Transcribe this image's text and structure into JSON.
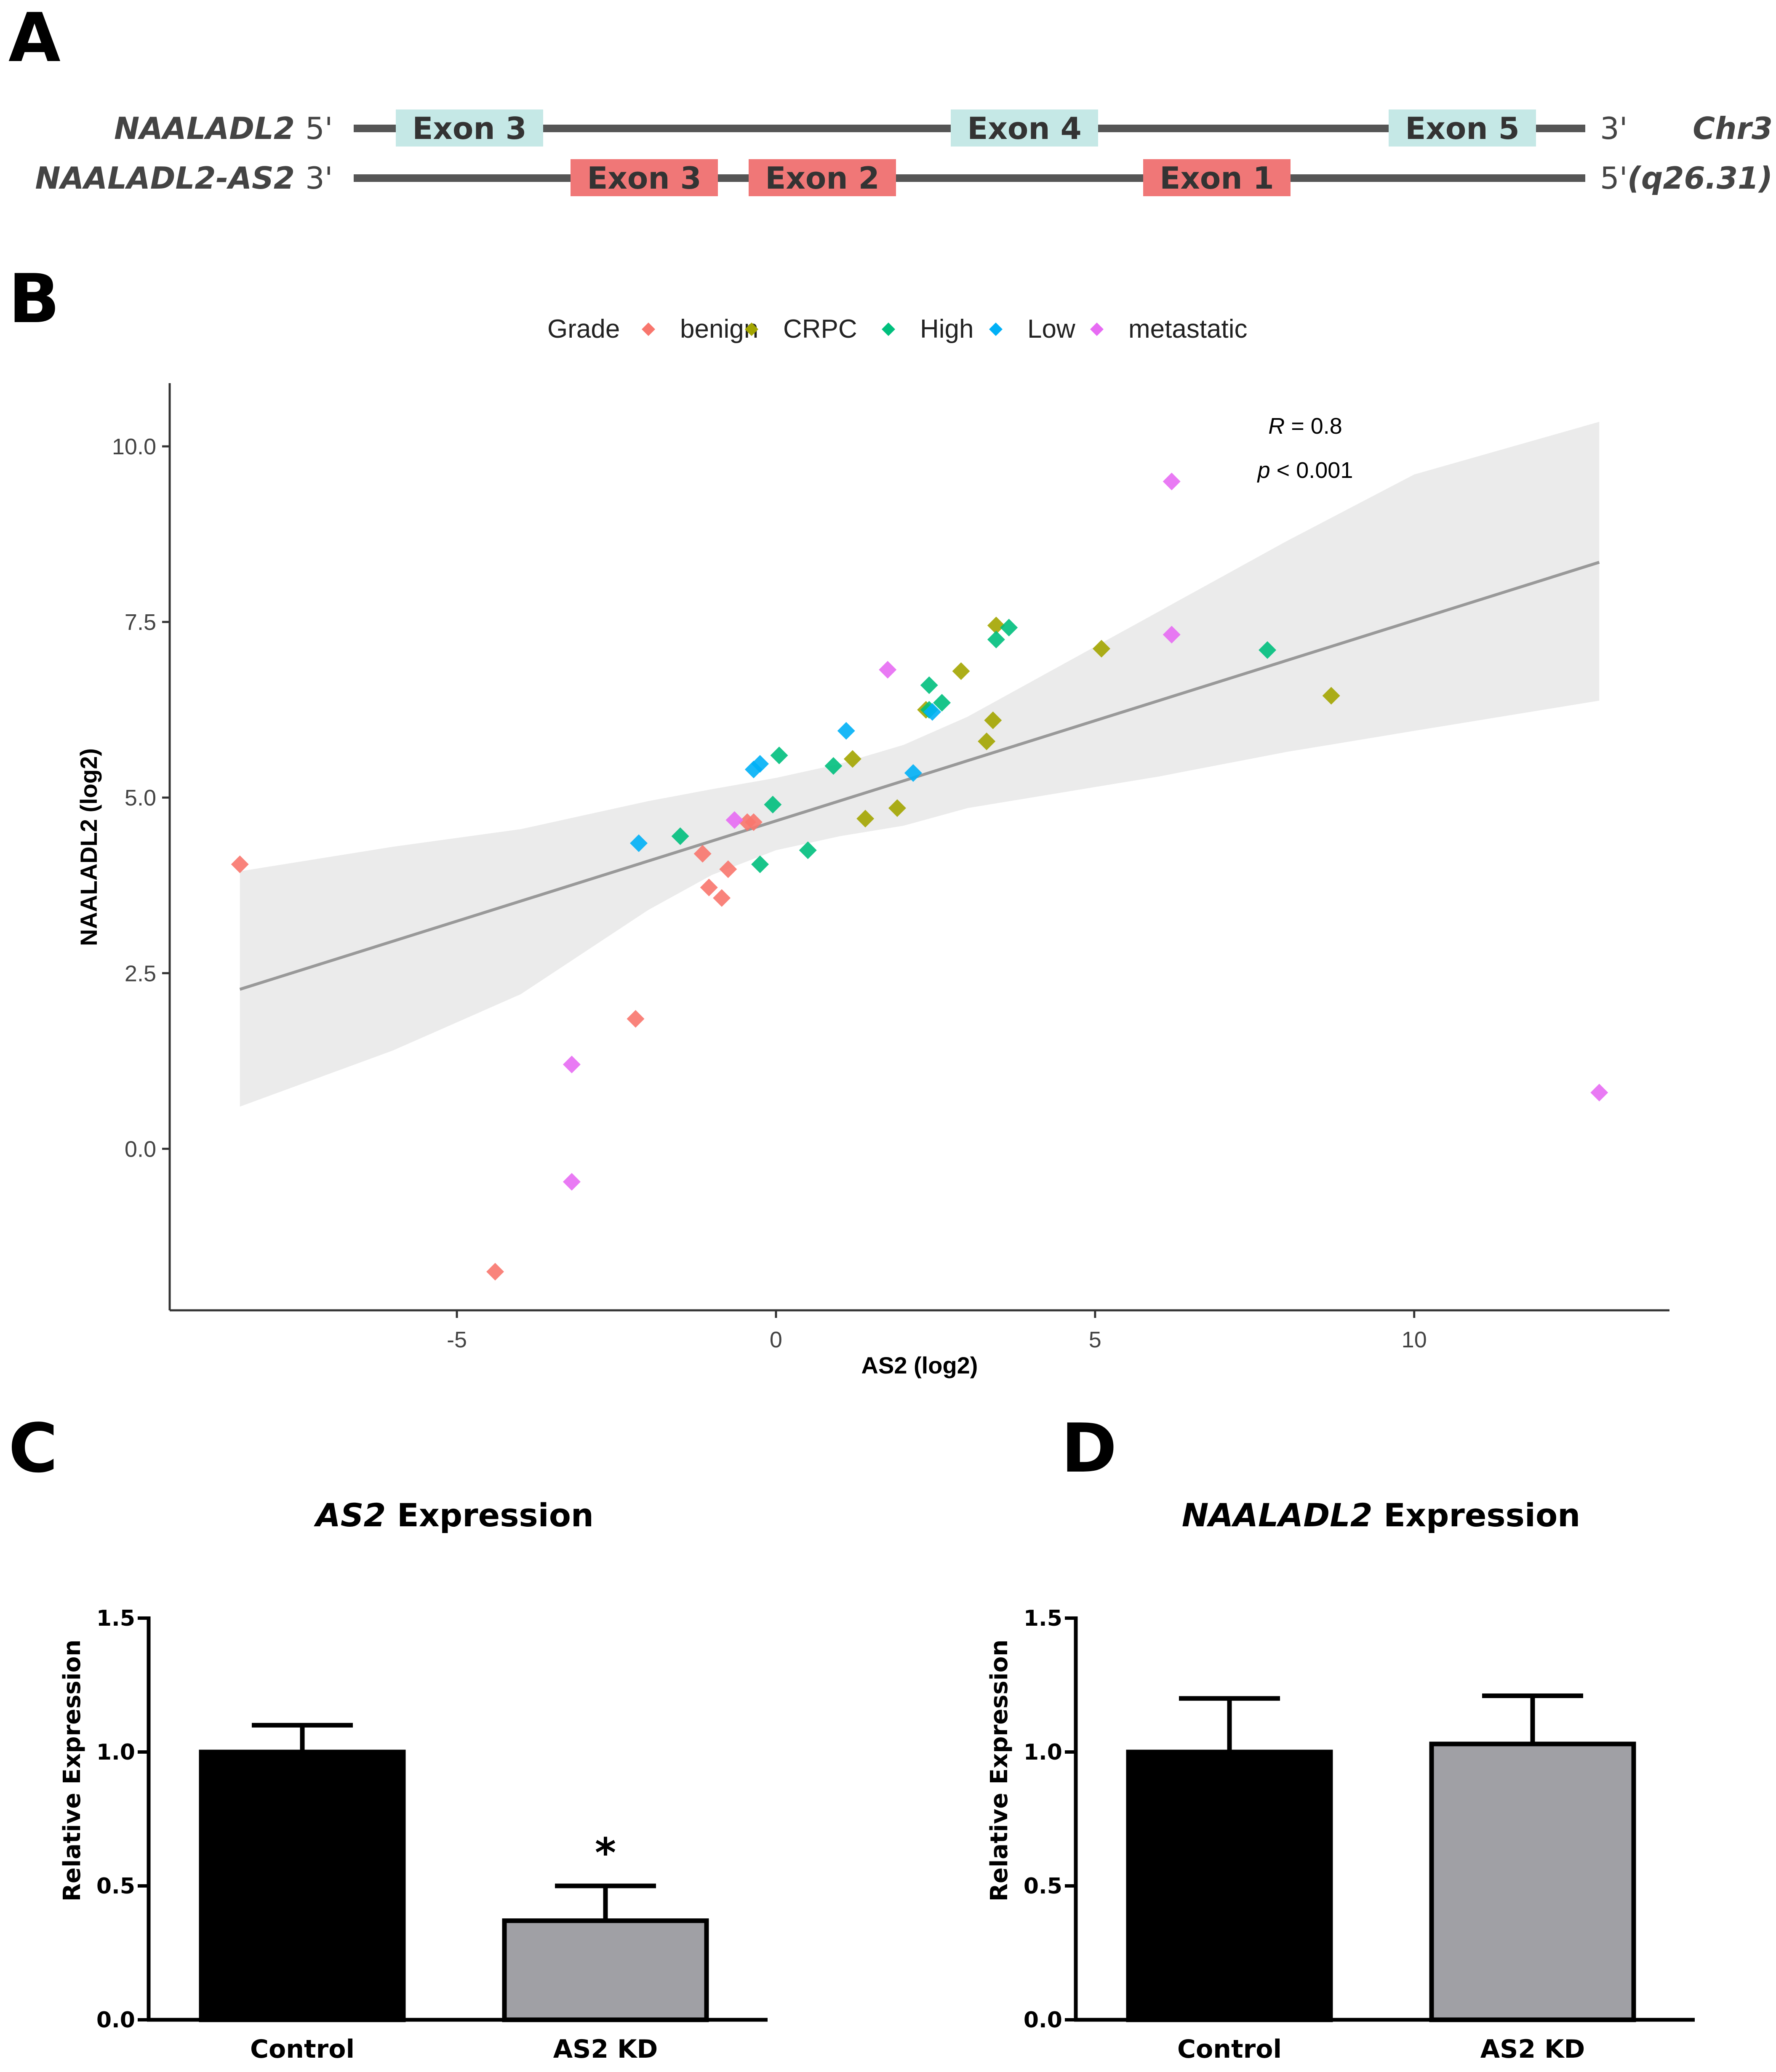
{
  "panel_labels": {
    "a": "A",
    "b": "B",
    "c": "C",
    "d": "D"
  },
  "panel_a": {
    "genes": [
      {
        "name": "NAALADL2",
        "left_end": "5'",
        "right_end": "3'",
        "exon_color": "#c5e8e6",
        "exons": [
          "Exon 3",
          "Exon 4",
          "Exon 5"
        ]
      },
      {
        "name": "NAALADL2-AS2",
        "left_end": "3'",
        "right_end": "5'",
        "exon_color": "#f07777",
        "exons": [
          "Exon 3",
          "Exon 2",
          "Exon 1"
        ]
      }
    ],
    "chromosome": "Chr3",
    "locus": "(q26.31)"
  },
  "colors": {
    "benign": "#f8766d",
    "CRPC": "#a3a500",
    "High": "#00bf7d",
    "Low": "#00b0f6",
    "metastatic": "#e76bf3",
    "ci_band": "#ebebeb",
    "fit_line": "#999999",
    "bar_control": "#000000",
    "bar_kd": "#a0a0a5"
  },
  "chart_data": [
    {
      "type": "scatter",
      "panel": "B",
      "xlabel": "AS2 (log2)",
      "ylabel": "NAALADL2 (log2)",
      "xlim": [
        -9.5,
        14
      ],
      "ylim": [
        -2.3,
        10.9
      ],
      "xticks": [
        -5,
        0,
        5,
        10
      ],
      "xtick_labels": [
        "-5",
        "0",
        "5",
        "10"
      ],
      "yticks": [
        0,
        2.5,
        5,
        7.5,
        10
      ],
      "ytick_labels": [
        "0.0",
        "2.5",
        "5.0",
        "7.5",
        "10.0"
      ],
      "legend": {
        "title": "Grade",
        "position": "top",
        "entries": [
          "benign",
          "CRPC",
          "High",
          "Low",
          "metastatic"
        ]
      },
      "annotation": {
        "r_var": "R",
        "r_rest": " = 0.8",
        "p_var": "p",
        "p_rest": " < 0.001"
      },
      "fit": {
        "x": [
          -8.4,
          12.9
        ],
        "y": [
          2.27,
          8.35
        ]
      },
      "ci_band": {
        "x": [
          -8.4,
          -6,
          -4,
          -2,
          -1,
          0,
          1,
          2,
          3,
          4,
          6,
          8,
          10,
          12.9
        ],
        "upper": [
          3.95,
          4.3,
          4.55,
          4.95,
          5.12,
          5.28,
          5.48,
          5.75,
          6.15,
          6.65,
          7.65,
          8.65,
          9.6,
          10.35
        ],
        "lower": [
          0.6,
          1.4,
          2.2,
          3.4,
          3.9,
          4.25,
          4.45,
          4.6,
          4.85,
          5.0,
          5.3,
          5.65,
          5.95,
          6.38
        ]
      },
      "series": [
        {
          "name": "benign",
          "points": [
            [
              -8.4,
              4.05
            ],
            [
              -4.4,
              -1.75
            ],
            [
              -2.2,
              1.85
            ],
            [
              -1.15,
              4.2
            ],
            [
              -1.05,
              3.72
            ],
            [
              -0.85,
              3.57
            ],
            [
              -0.75,
              3.98
            ],
            [
              -0.45,
              4.65
            ],
            [
              -0.35,
              4.65
            ]
          ]
        },
        {
          "name": "CRPC",
          "points": [
            [
              1.2,
              5.55
            ],
            [
              1.4,
              4.7
            ],
            [
              1.9,
              4.85
            ],
            [
              2.35,
              6.25
            ],
            [
              2.9,
              6.8
            ],
            [
              3.3,
              5.8
            ],
            [
              3.4,
              6.1
            ],
            [
              3.45,
              7.45
            ],
            [
              5.1,
              7.12
            ],
            [
              8.7,
              6.45
            ]
          ]
        },
        {
          "name": "High",
          "points": [
            [
              -1.5,
              4.45
            ],
            [
              -0.25,
              4.05
            ],
            [
              -0.05,
              4.9
            ],
            [
              0.05,
              5.6
            ],
            [
              0.5,
              4.25
            ],
            [
              0.9,
              5.45
            ],
            [
              2.4,
              6.6
            ],
            [
              2.4,
              6.25
            ],
            [
              2.6,
              6.35
            ],
            [
              3.45,
              7.25
            ],
            [
              3.65,
              7.42
            ],
            [
              7.7,
              7.1
            ]
          ]
        },
        {
          "name": "Low",
          "points": [
            [
              -2.15,
              4.35
            ],
            [
              -0.35,
              5.4
            ],
            [
              -0.25,
              5.48
            ],
            [
              1.1,
              5.95
            ],
            [
              2.15,
              5.35
            ],
            [
              2.45,
              6.22
            ]
          ]
        },
        {
          "name": "metastatic",
          "points": [
            [
              -3.2,
              1.2
            ],
            [
              -3.2,
              -0.47
            ],
            [
              -0.65,
              4.68
            ],
            [
              1.75,
              6.82
            ],
            [
              6.2,
              9.5
            ],
            [
              6.2,
              7.32
            ],
            [
              12.9,
              0.8
            ]
          ]
        }
      ]
    },
    {
      "type": "bar",
      "panel": "C",
      "title_italic": "AS2",
      "title_rest": " Expression",
      "ylabel": "Relative Expression",
      "categories": [
        "Control",
        "AS2 KD"
      ],
      "values": [
        1.0,
        0.37
      ],
      "errors": [
        0.1,
        0.13
      ],
      "ylim": [
        0,
        1.5
      ],
      "yticks": [
        0,
        0.5,
        1.0,
        1.5
      ],
      "ytick_labels": [
        "0.0",
        "0.5",
        "1.0",
        "1.5"
      ],
      "significance": [
        "",
        "*"
      ]
    },
    {
      "type": "bar",
      "panel": "D",
      "title_italic": "NAALADL2",
      "title_rest": " Expression",
      "ylabel": "Relative Expression",
      "categories": [
        "Control",
        "AS2 KD"
      ],
      "values": [
        1.0,
        1.03
      ],
      "errors": [
        0.2,
        0.18
      ],
      "ylim": [
        0,
        1.5
      ],
      "yticks": [
        0,
        0.5,
        1.0,
        1.5
      ],
      "ytick_labels": [
        "0.0",
        "0.5",
        "1.0",
        "1.5"
      ],
      "significance": [
        "",
        ""
      ]
    }
  ]
}
